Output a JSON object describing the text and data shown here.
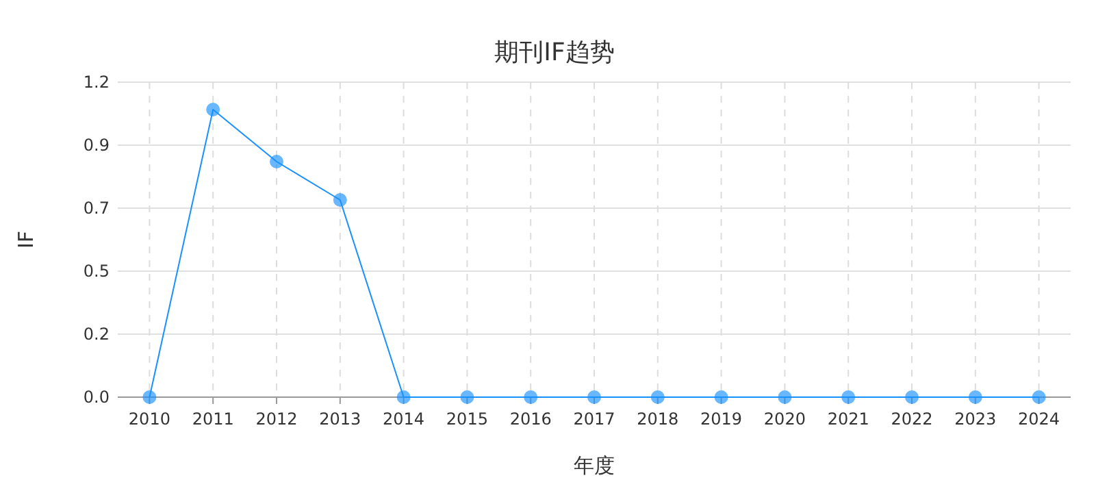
{
  "chart_data": {
    "type": "line",
    "title": "期刊IF趋势",
    "xlabel": "年度",
    "ylabel": "IF",
    "categories": [
      "2010",
      "2011",
      "2012",
      "2013",
      "2014",
      "2015",
      "2016",
      "2017",
      "2018",
      "2019",
      "2020",
      "2021",
      "2022",
      "2023",
      "2024"
    ],
    "series": [
      {
        "color": "#1890ff",
        "values": [
          0,
          1.05,
          0.86,
          0.72,
          0,
          0,
          0,
          0,
          0,
          0,
          0,
          0,
          0,
          0,
          0
        ]
      }
    ],
    "marker": "circle",
    "line_style": "solid",
    "grid": true,
    "ylim": [
      0,
      1.15
    ],
    "yticks": [
      {
        "value": 0,
        "label": "0.0"
      },
      {
        "value": 0.23,
        "label": "0.2"
      },
      {
        "value": 0.46,
        "label": "0.5"
      },
      {
        "value": 0.69,
        "label": "0.7"
      },
      {
        "value": 0.92,
        "label": "0.9"
      },
      {
        "value": 1.15,
        "label": "1.2"
      }
    ]
  }
}
